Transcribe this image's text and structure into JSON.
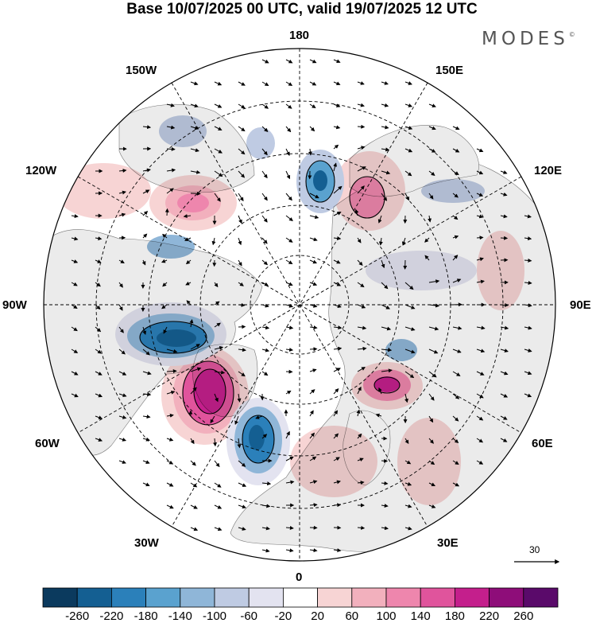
{
  "title": "Base 10/07/2025 00 UTC, valid 19/07/2025 12 UTC",
  "brand": "MODES",
  "brand_mark": "©",
  "longitude_labels": {
    "lon_180": "180",
    "lon_0": "0",
    "lon_150w": "150W",
    "lon_150e": "150E",
    "lon_120w": "120W",
    "lon_120e": "120E",
    "lon_90w": "90W",
    "lon_90e": "90E",
    "lon_60w": "60W",
    "lon_60e": "60E",
    "lon_30w": "30W",
    "lon_30e": "30E"
  },
  "colorbar": {
    "ticks": [
      "-260",
      "-220",
      "-180",
      "-140",
      "-100",
      "-60",
      "-20",
      "20",
      "60",
      "100",
      "140",
      "180",
      "220",
      "260"
    ],
    "colors": [
      "#0b3a5e",
      "#145f92",
      "#2b80ba",
      "#5aa2cf",
      "#8fb6d8",
      "#bfcbe3",
      "#e3e3f0",
      "#ffffff",
      "#f7d4d4",
      "#f2b0bd",
      "#ee86ad",
      "#e0549c",
      "#c41f8c",
      "#8e0d79",
      "#5a0a6a"
    ]
  },
  "reference_vector": {
    "label": "30"
  },
  "colors": {
    "land": "#ebebeb",
    "ocean": "#ffffff",
    "graticule": "#000000"
  }
}
